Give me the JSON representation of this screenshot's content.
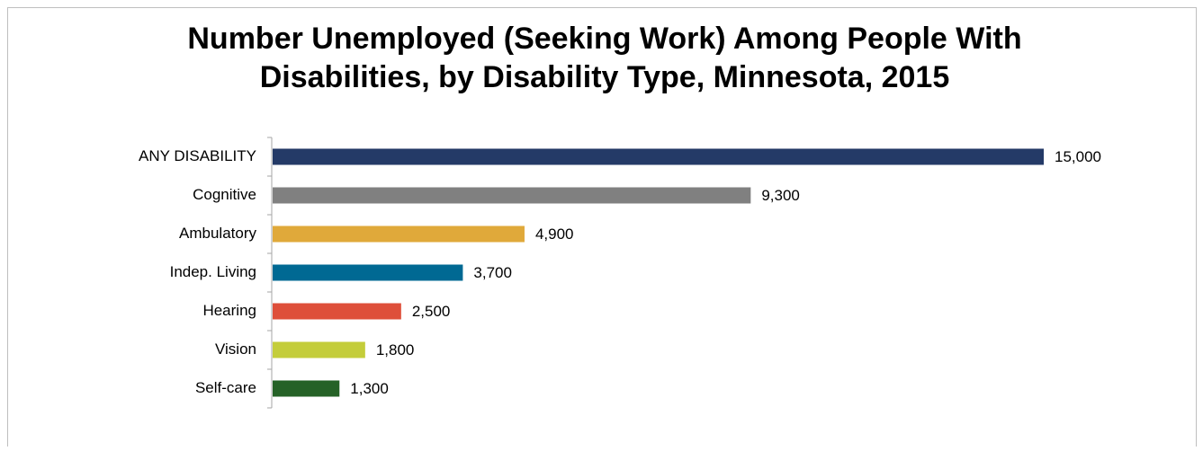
{
  "chart_data": {
    "type": "bar",
    "orientation": "horizontal",
    "title": [
      "Number Unemployed (Seeking Work) Among People With",
      "Disabilities, by Disability Type, Minnesota, 2015"
    ],
    "categories": [
      "ANY DISABILITY",
      "Cognitive",
      "Ambulatory",
      "Indep. Living",
      "Hearing",
      "Vision",
      "Self-care"
    ],
    "values": [
      15000,
      9300,
      4900,
      3700,
      2500,
      1800,
      1300
    ],
    "value_labels": [
      "15,000",
      "9,300",
      "4,900",
      "3,700",
      "2,500",
      "1,800",
      "1,300"
    ],
    "colors": [
      "#243a67",
      "#808080",
      "#e0a93a",
      "#006993",
      "#de4f3a",
      "#c4cd3a",
      "#256227"
    ]
  }
}
